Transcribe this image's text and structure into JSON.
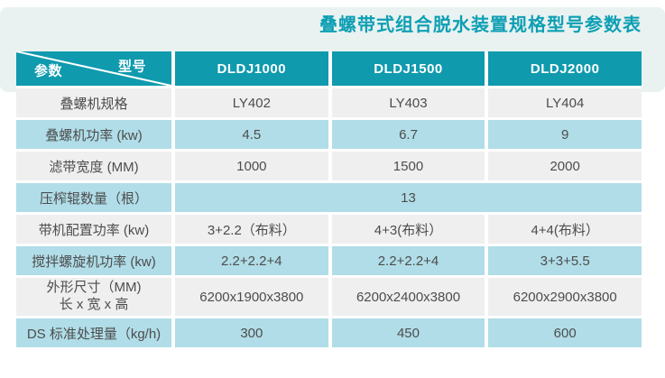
{
  "page": {
    "title": "叠螺带式组合脱水装置规格型号参数表"
  },
  "colors": {
    "header_teal": "#0f9aae",
    "title_teal": "#0e9fb4",
    "row_blue": "#b0dde8",
    "row_gray": "#efefef",
    "band_background": "#e9f2f1",
    "body_text": "#4d4d4d"
  },
  "table": {
    "corner": {
      "param": "参数",
      "model": "型号"
    },
    "columns": [
      "DLDJ1000",
      "DLDJ1500",
      "DLDJ2000"
    ],
    "rows": [
      {
        "label": "叠螺机规格",
        "values": [
          "LY402",
          "LY403",
          "LY404"
        ]
      },
      {
        "label": "叠螺机功率 (kw)",
        "values": [
          "4.5",
          "6.7",
          "9"
        ]
      },
      {
        "label": "滤带宽度 (MM)",
        "values": [
          "1000",
          "1500",
          "2000"
        ]
      },
      {
        "label": "压榨辊数量（根）",
        "values": [
          "13"
        ],
        "span": true
      },
      {
        "label": "带机配置功率 (kw)",
        "values": [
          "3+2.2（布料）",
          "4+3(布料）",
          "4+4(布料）"
        ]
      },
      {
        "label": "搅拌螺旋机功率 (kw)",
        "values": [
          "2.2+2.2+4",
          "2.2+2.2+4",
          "3+3+5.5"
        ]
      },
      {
        "label": "外形尺寸（MM)",
        "label2": "长 x 宽 x 高",
        "values": [
          "6200x1900x3800",
          "6200x2400x3800",
          "6200x2900x3800"
        ]
      },
      {
        "label": "DS 标准处理量（kg/h)",
        "values": [
          "300",
          "450",
          "600"
        ]
      }
    ]
  }
}
